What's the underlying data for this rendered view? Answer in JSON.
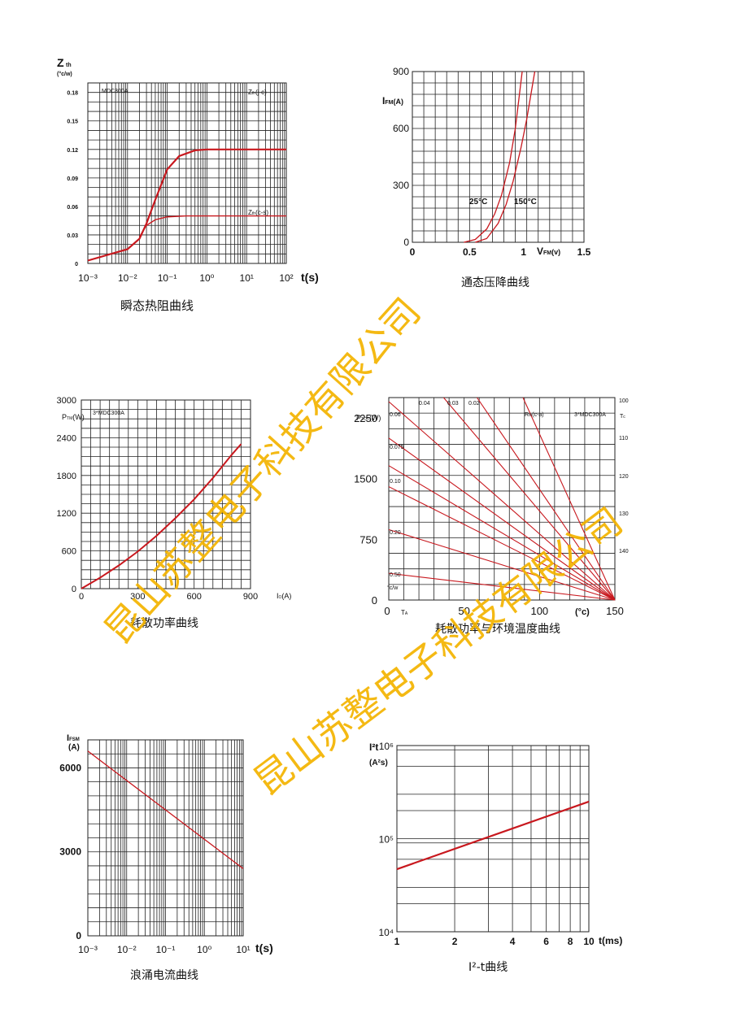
{
  "watermark": "昆山苏整电子科技有限公司",
  "chart_data": [
    {
      "id": "zth",
      "type": "line",
      "title": "瞬态热阻曲线",
      "ylabel_main": "Z",
      "ylabel_sub": "th",
      "yunit": "(°c/w)",
      "xlabel": "t(s)",
      "model": "MDC300A",
      "y_ticks": [
        "0",
        "0.03",
        "0.06",
        "0.09",
        "0.12",
        "0.15",
        "0.18"
      ],
      "x_ticks": [
        "10⁻³",
        "10⁻²",
        "10⁻¹",
        "10⁰",
        "10¹",
        "10²"
      ],
      "xlim_log": [
        -3,
        2
      ],
      "ylim": [
        0,
        0.19
      ],
      "series": [
        {
          "name": "Z_th(j-c)",
          "label_main": "Z",
          "label_sub": "th",
          "label_tail": "(j-c)",
          "x": [
            0.001,
            0.01,
            0.02,
            0.03,
            0.05,
            0.1,
            0.2,
            0.5,
            1,
            100
          ],
          "y": [
            0.003,
            0.015,
            0.026,
            0.042,
            0.067,
            0.099,
            0.113,
            0.119,
            0.12,
            0.12
          ]
        },
        {
          "name": "Z_th(c-s)",
          "label_main": "Z",
          "label_sub": "th",
          "label_tail": "(c-s)",
          "x": [
            0.02,
            0.03,
            0.05,
            0.1,
            0.3,
            1,
            100
          ],
          "y": [
            0.028,
            0.04,
            0.046,
            0.049,
            0.05,
            0.05,
            0.05
          ]
        }
      ]
    },
    {
      "id": "vfm",
      "type": "line",
      "title": "通态压降曲线",
      "ylabel_main": "I",
      "ylabel_sub": "FM",
      "yunit": "(A)",
      "xlabel_main": "V",
      "xlabel_sub": "FM",
      "xlabel_tail": "(v)",
      "y_ticks": [
        "0",
        "300",
        "600",
        "900"
      ],
      "x_ticks": [
        "0",
        "0.5",
        "1",
        "1.5"
      ],
      "xlim": [
        0,
        1.5
      ],
      "ylim": [
        0,
        900
      ],
      "series": [
        {
          "name": "25°C",
          "x": [
            0.45,
            0.55,
            0.65,
            0.72,
            0.78,
            0.85,
            0.9,
            0.96
          ],
          "y": [
            0,
            15,
            70,
            150,
            250,
            420,
            600,
            900
          ]
        },
        {
          "name": "150°C",
          "x": [
            0.55,
            0.65,
            0.75,
            0.82,
            0.88,
            0.95,
            1.0,
            1.07
          ],
          "y": [
            0,
            20,
            100,
            200,
            320,
            500,
            650,
            900
          ]
        }
      ]
    },
    {
      "id": "ptm",
      "type": "line",
      "title": "耗散功率曲线",
      "ylabel_main": "P",
      "ylabel_sub": "TM",
      "yunit": "(W)",
      "xlabel_main": "I",
      "xlabel_sub": "O",
      "xlabel_tail": "(A)",
      "model": "3*MDC300A",
      "y_ticks": [
        "0",
        "600",
        "1200",
        "1800",
        "2400",
        "3000"
      ],
      "x_ticks": [
        "0",
        "300",
        "600",
        "900"
      ],
      "xlim": [
        0,
        900
      ],
      "ylim": [
        0,
        3000
      ],
      "series": [
        {
          "name": "P_TM",
          "x": [
            0,
            100,
            200,
            300,
            400,
            500,
            600,
            700,
            800,
            850
          ],
          "y": [
            0,
            175,
            370,
            590,
            840,
            1120,
            1420,
            1760,
            2130,
            2300
          ]
        }
      ]
    },
    {
      "id": "ptot",
      "type": "line",
      "title": "耗散功率与环境温度曲线",
      "ylabel_main": "P",
      "ylabel_sub": "TOT",
      "yunit": "(W)",
      "xlabel": "T",
      "xlabel_sub": "A",
      "xunit": "(°c)",
      "model": "3*MDC300A",
      "rth_label": "R",
      "rth_sub": "th",
      "rth_tail": "(c-a)",
      "tc_label": "T",
      "tc_sub": "c",
      "unit_label": "°c/w",
      "y_ticks": [
        "0",
        "750",
        "1500",
        "2250"
      ],
      "x_ticks": [
        "0",
        "50",
        "100",
        "150"
      ],
      "top_labels": [
        "0.04",
        "0.03",
        "0.02"
      ],
      "left_labels": [
        "0.06",
        "0.075",
        "0.10",
        "0.20",
        "0.50"
      ],
      "right_ticks": [
        "100",
        "110",
        "120",
        "130",
        "140"
      ],
      "xlim": [
        0,
        150
      ],
      "ylim": [
        0,
        2500
      ],
      "rth_lines": [
        {
          "rth": 0.02,
          "p0": 6150
        },
        {
          "rth": 0.03,
          "p0": 4100
        },
        {
          "rth": 0.04,
          "p0": 3300
        },
        {
          "rth": 0.06,
          "p0": 2450
        },
        {
          "rth": 0.075,
          "p0": 2000
        },
        {
          "rth": 0.1,
          "p0": 1660
        },
        {
          "rth": 0.12,
          "p0": 1400
        },
        {
          "rth": 0.2,
          "p0": 870
        },
        {
          "rth": 0.5,
          "p0": 330
        }
      ]
    },
    {
      "id": "ifsm",
      "type": "line",
      "title": "浪涌电流曲线",
      "ylabel_main": "I",
      "ylabel_sub": "FSM",
      "yunit": "(A)",
      "xlabel": "t(s)",
      "y_ticks": [
        "0",
        "3000",
        "6000"
      ],
      "x_ticks": [
        "10⁻³",
        "10⁻²",
        "10⁻¹",
        "10⁰",
        "10¹"
      ],
      "xlim_log": [
        -3,
        1
      ],
      "ylim": [
        0,
        7000
      ],
      "series": [
        {
          "name": "I_FSM",
          "x": [
            0.001,
            10
          ],
          "y": [
            6600,
            2400
          ]
        }
      ]
    },
    {
      "id": "i2t",
      "type": "line",
      "title": "I²-t曲线",
      "ylabel_main": "I²t",
      "yunit": "(A²s)",
      "xlabel": "t(ms)",
      "y_ticks": [
        "10⁴",
        "10⁵",
        "10⁶"
      ],
      "x_ticks": [
        "1",
        "2",
        "4",
        "6",
        "8",
        "10"
      ],
      "xlim_log": [
        0,
        1
      ],
      "ylim_log": [
        4,
        6
      ],
      "series": [
        {
          "name": "I²t",
          "x": [
            1,
            10
          ],
          "y": [
            47000,
            250000
          ]
        }
      ]
    }
  ]
}
